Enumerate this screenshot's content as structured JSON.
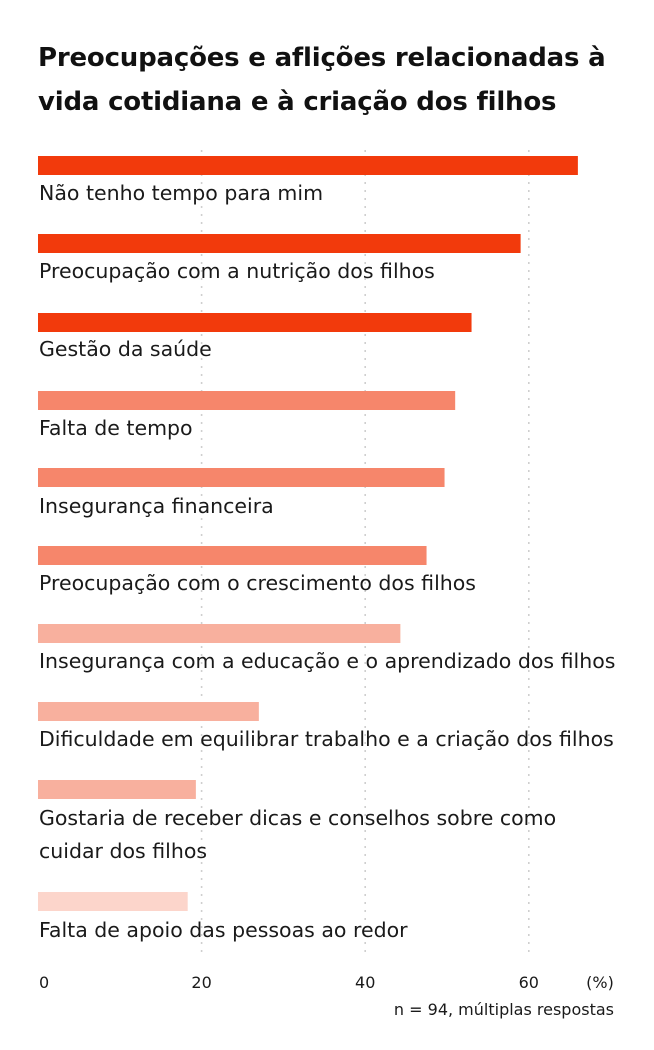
{
  "chart_data": {
    "type": "bar",
    "orientation": "horizontal",
    "title": "Preocupações e aflições relacionadas à vida cotidiana e à criação dos filhos",
    "categories": [
      "Não tenho tempo para mim",
      "Preocupação com a nutrição dos filhos",
      "Gestão da saúde",
      "Falta de tempo",
      "Insegurança financeira",
      "Preocupação com o crescimento dos filhos",
      "Insegurança com a educação e o aprendizado dos filhos",
      "Dificuldade em equilibrar trabalho e a criação dos filhos",
      "Gostaria de receber dicas e conselhos sobre como cuidar dos filhos",
      "Falta de apoio das pessoas ao redor"
    ],
    "values": [
      66,
      59,
      53,
      51,
      49.7,
      47.5,
      44.3,
      27,
      19.3,
      18.3
    ],
    "bar_colors": [
      "#f23a0c",
      "#f23a0c",
      "#f23a0c",
      "#f6866b",
      "#f6866b",
      "#f6866b",
      "#f8b09e",
      "#f8b09e",
      "#f8b09e",
      "#fcd5cb"
    ],
    "xlim": [
      0,
      70
    ],
    "xticks": [
      0,
      20,
      40,
      60
    ],
    "xunit": "(%)",
    "grid": true,
    "note": "n = 94, múltiplas respostas"
  }
}
